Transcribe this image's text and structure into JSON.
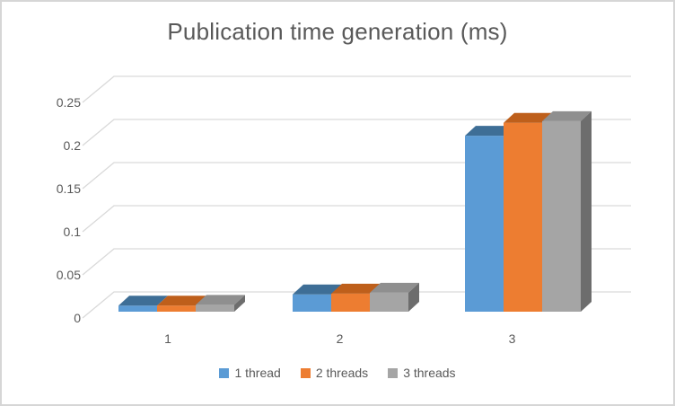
{
  "title": "Publication time generation (ms)",
  "chart_data": {
    "type": "bar",
    "subtype": "3d-clustered-column",
    "title": "Publication time generation (ms)",
    "categories": [
      "1",
      "2",
      "3"
    ],
    "series": [
      {
        "name": "1 thread",
        "color": "#5B9BD5",
        "top_color": "#3E6E96",
        "side_color": "#2F5876",
        "values": [
          0.007,
          0.02,
          0.204
        ]
      },
      {
        "name": "2 threads",
        "color": "#ED7D31",
        "top_color": "#BE5F1B",
        "side_color": "#9E4E14",
        "values": [
          0.007,
          0.021,
          0.219
        ]
      },
      {
        "name": "3 threads",
        "color": "#A5A5A5",
        "top_color": "#8F8F8F",
        "side_color": "#6D6D6D",
        "values": [
          0.008,
          0.022,
          0.221
        ]
      }
    ],
    "ylim": [
      0,
      0.25
    ],
    "yticks": [
      0,
      0.05,
      0.1,
      0.15,
      0.2,
      0.25
    ],
    "ytick_labels": [
      "0",
      "0.05",
      "0.1",
      "0.15",
      "0.2",
      "0.25"
    ],
    "xlabel": "",
    "ylabel": "",
    "grid": true,
    "legend_position": "bottom",
    "colors": {
      "gridline": "#D9D9D9",
      "text": "#595959",
      "background": "#FFFFFF",
      "border": "#D6D6D6"
    }
  }
}
